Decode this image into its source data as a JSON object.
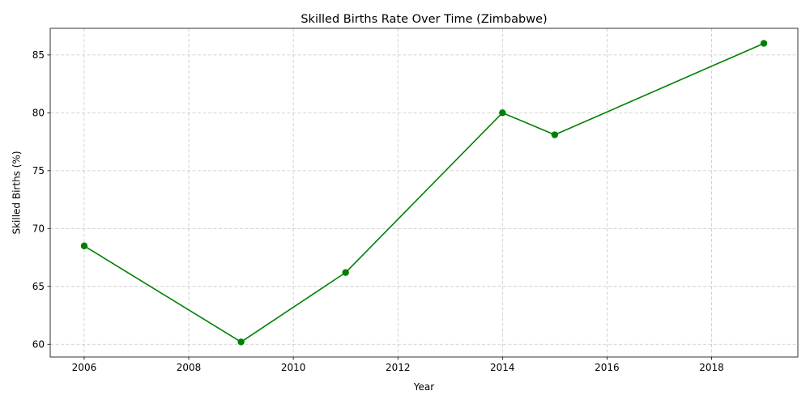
{
  "chart_data": {
    "type": "line",
    "title": "Skilled Births Rate Over Time (Zimbabwe)",
    "xlabel": "Year",
    "ylabel": "Skilled Births (%)",
    "x": [
      2006,
      2009,
      2011,
      2014,
      2015,
      2019
    ],
    "series": [
      {
        "values": [
          68.5,
          60.2,
          66.2,
          80.0,
          78.1,
          86.0
        ],
        "color": "#008000",
        "marker": "circle"
      }
    ],
    "xlim": [
      2005.35,
      2019.65
    ],
    "ylim": [
      58.9,
      87.3
    ],
    "xticks": [
      2006,
      2008,
      2010,
      2012,
      2014,
      2016,
      2018
    ],
    "xtick_labels": [
      "2006",
      "2008",
      "2010",
      "2012",
      "2014",
      "2016",
      "2018"
    ],
    "yticks": [
      60,
      65,
      70,
      75,
      80,
      85
    ],
    "ytick_labels": [
      "60",
      "65",
      "70",
      "75",
      "80",
      "85"
    ],
    "grid": true,
    "legend": "none"
  }
}
